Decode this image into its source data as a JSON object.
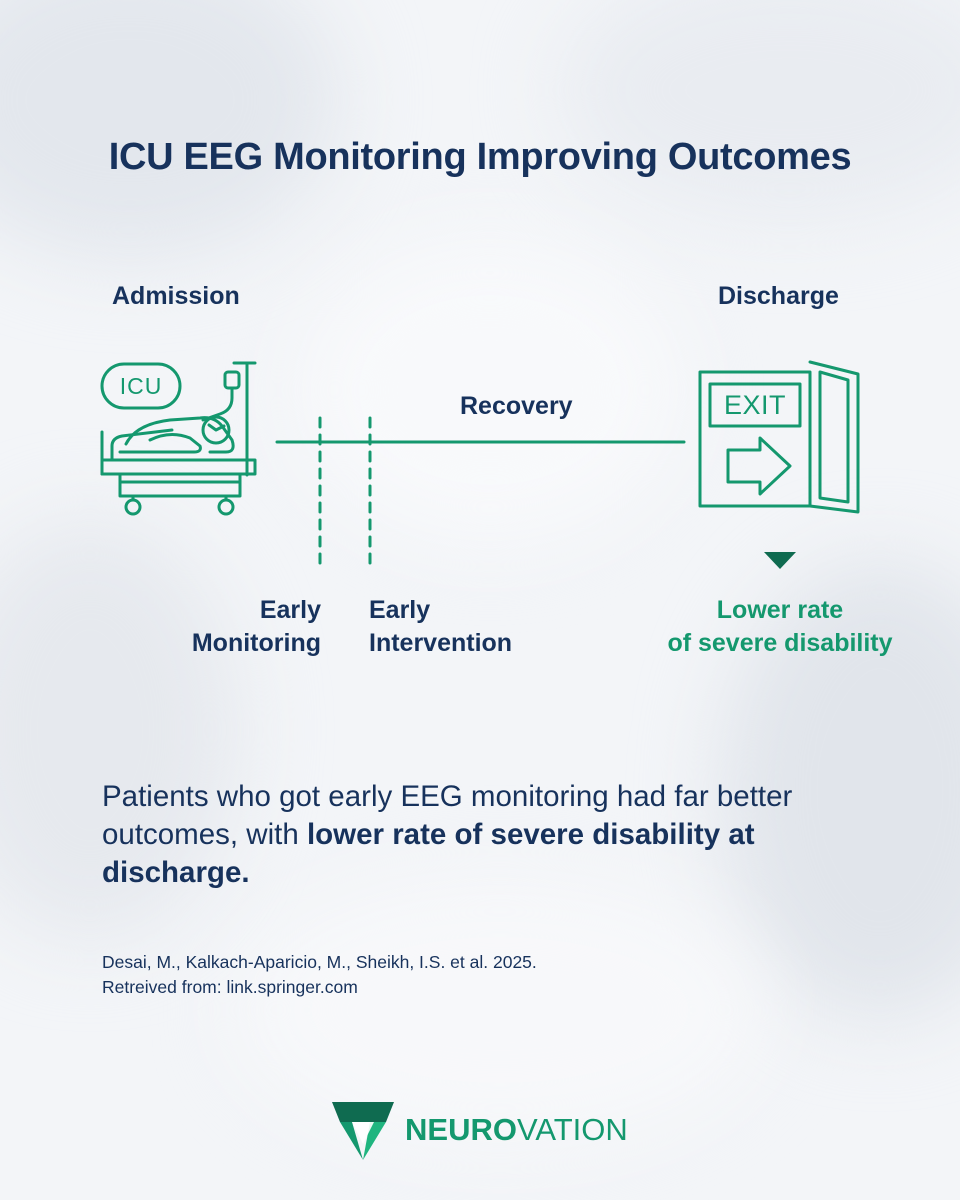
{
  "title": "ICU EEG Monitoring Improving Outcomes",
  "timeline": {
    "admission": "Admission",
    "discharge": "Discharge",
    "recovery": "Recovery",
    "icu_sign": "ICU",
    "exit_sign": "EXIT",
    "early_monitoring": [
      "Early",
      "Monitoring"
    ],
    "early_intervention": [
      "Early",
      "Intervention"
    ],
    "outcome": [
      "Lower rate",
      "of severe disability"
    ]
  },
  "summary": {
    "plain_1": "Patients who got early EEG monitoring had far better outcomes, with ",
    "bold": "lower rate of severe disability at discharge."
  },
  "citation": {
    "line1": "Desai, M., Kalkach-Aparicio, M., Sheikh, I.S. et al. 2025.",
    "line2": "Retreived from: link.springer.com"
  },
  "logo": {
    "part1": "NEURO",
    "part2": "VATION"
  },
  "colors": {
    "navy": "#17325c",
    "green": "#14986e",
    "dark_green": "#0f6b50",
    "background": "#f3f5f8"
  },
  "icons": [
    "icu-bed-icon",
    "exit-door-icon",
    "neurovation-shield-logo-icon",
    "down-triangle-icon"
  ]
}
